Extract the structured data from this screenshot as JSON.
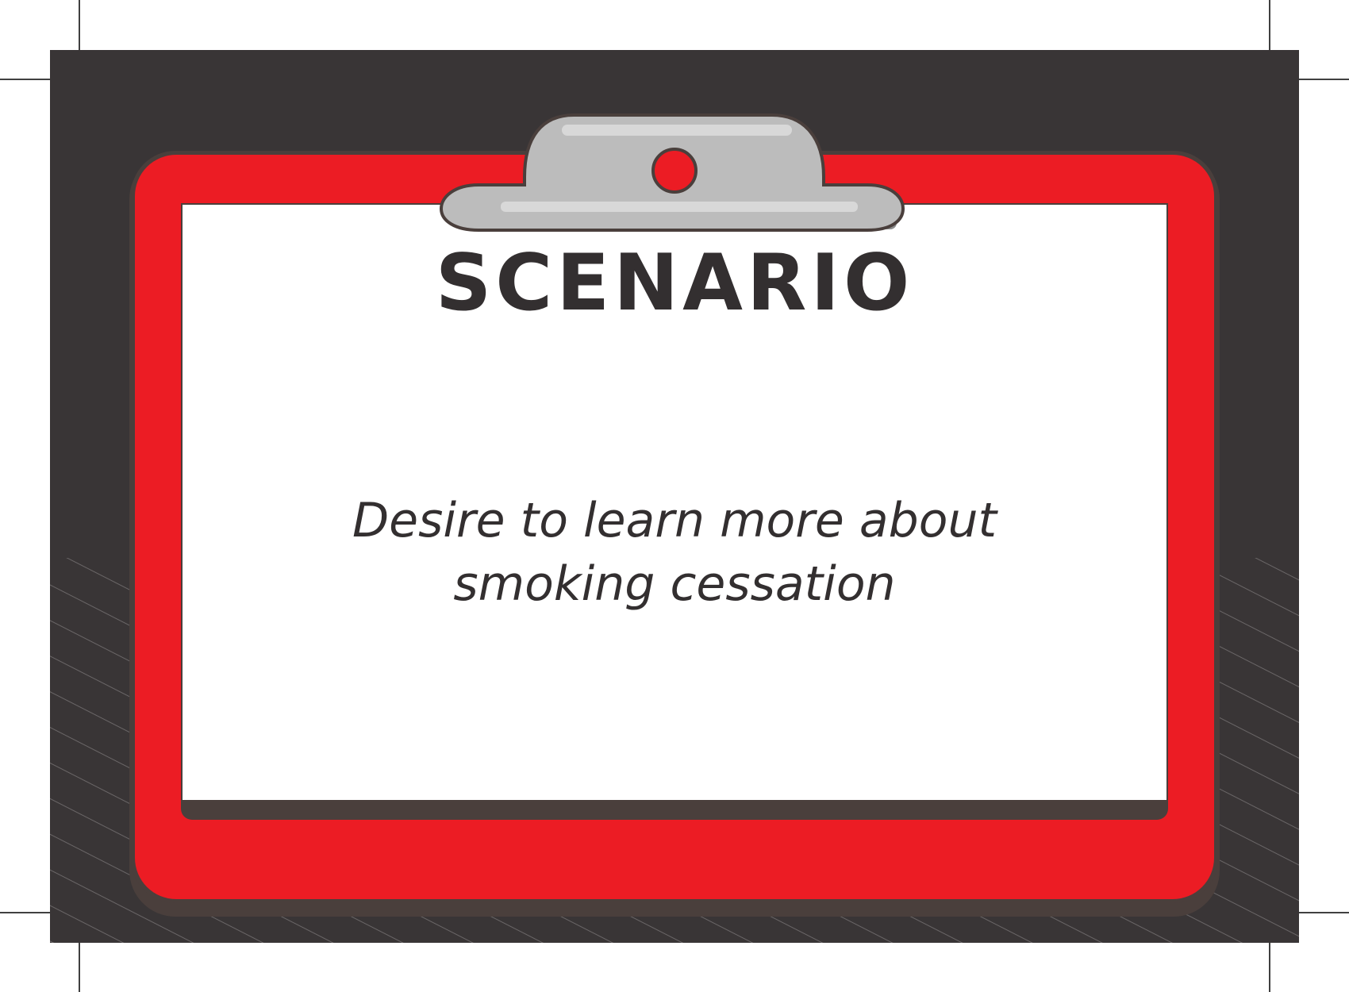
{
  "card": {
    "heading": "SCENARIO",
    "scenario_line_1": "Desire to learn more about",
    "scenario_line_2": "smoking cessation"
  },
  "colors": {
    "background": "#393536",
    "board_frame": "#ec1c24",
    "board_outline": "#4a3f3c",
    "clip": "#bcbcbc",
    "paper": "#ffffff",
    "text": "#332f30"
  },
  "icons": {
    "clip": "clipboard-clip-icon"
  }
}
